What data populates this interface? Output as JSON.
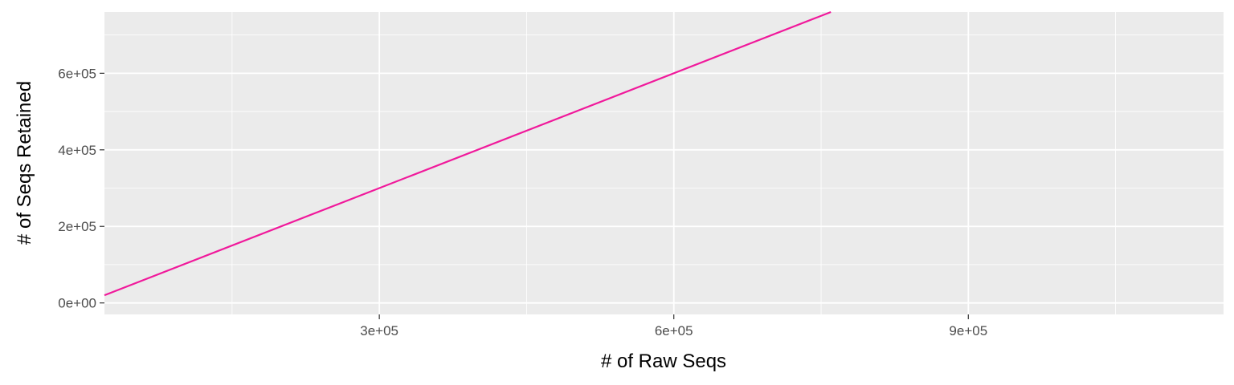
{
  "chart_data": {
    "type": "scatter",
    "title": "",
    "xlabel": "# of Raw Seqs",
    "ylabel": "# of Seqs Retained",
    "xlim": [
      20000,
      1160000
    ],
    "ylim": [
      -30000,
      760000
    ],
    "x_ticks": [
      300000,
      600000,
      900000
    ],
    "x_tick_labels": [
      "3e+05",
      "6e+05",
      "9e+05"
    ],
    "y_ticks": [
      0,
      200000,
      400000,
      600000
    ],
    "y_tick_labels": [
      "0e+00",
      "2e+05",
      "4e+05",
      "6e+05"
    ],
    "grid": true,
    "reference_line": {
      "slope": 1,
      "intercept": 0,
      "color": "#F0199B"
    },
    "point_color": "#000000",
    "point_opacity": 0.5,
    "points": []
  }
}
